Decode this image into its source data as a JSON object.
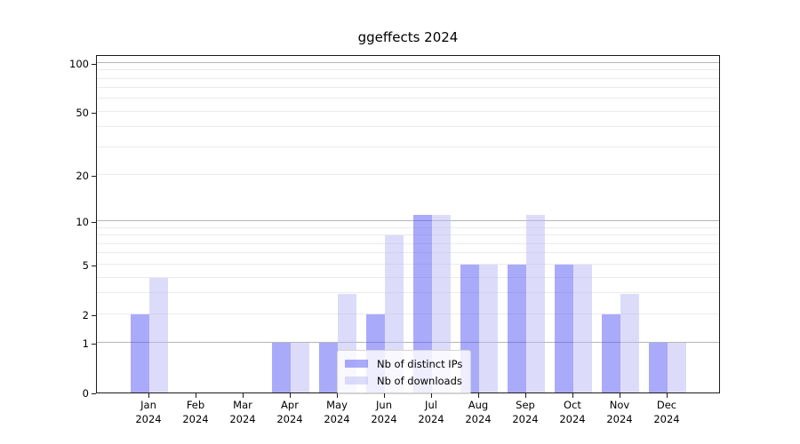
{
  "chart_data": {
    "type": "bar",
    "title": "ggeffects 2024",
    "categories": [
      "Jan",
      "Feb",
      "Mar",
      "Apr",
      "May",
      "Jun",
      "Jul",
      "Aug",
      "Sep",
      "Oct",
      "Nov",
      "Dec"
    ],
    "year_label": "2024",
    "series": [
      {
        "name": "Nb of distinct IPs",
        "color": "rgba(85,85,245,0.5)",
        "values": [
          2,
          0,
          0,
          1,
          1,
          2,
          11,
          5,
          5,
          5,
          2,
          1
        ]
      },
      {
        "name": "Nb of downloads",
        "color": "rgba(185,185,245,0.5)",
        "values": [
          4,
          0,
          0,
          1,
          3,
          8,
          11,
          5,
          11,
          5,
          3,
          1
        ]
      }
    ],
    "yscale": "log1p",
    "ylim": [
      0,
      113
    ],
    "yticks": [
      0,
      1,
      2,
      5,
      10,
      20,
      50,
      100
    ],
    "grid_major": [
      1,
      10,
      100
    ],
    "grid_minor": [
      2,
      3,
      4,
      5,
      6,
      7,
      8,
      9,
      20,
      30,
      40,
      50,
      60,
      70,
      80,
      90
    ],
    "grid_color_major": "#b5b5b5",
    "grid_color_minor": "#ebebeb",
    "legend_position": "lower center",
    "xlabel": "",
    "ylabel": ""
  }
}
